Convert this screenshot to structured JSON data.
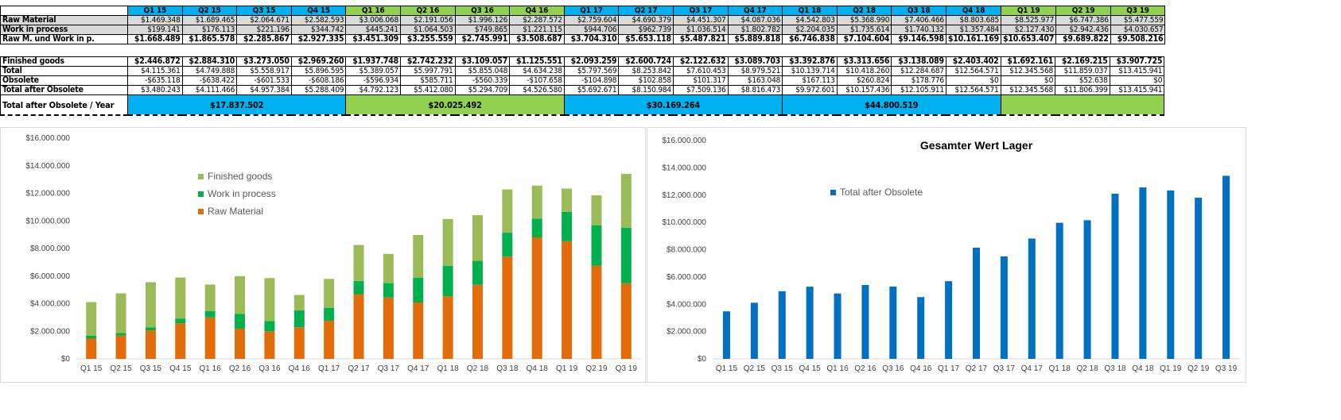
{
  "table": {
    "quarters": [
      "Q1 15",
      "Q2 15",
      "Q3 15",
      "Q4 15",
      "Q1 16",
      "Q2 16",
      "Q3 16",
      "Q4 16",
      "Q1 17",
      "Q2 17",
      "Q3 17",
      "Q4 17",
      "Q1 18",
      "Q2 18",
      "Q3 18",
      "Q4 18",
      "Q1 19",
      "Q2 19",
      "Q3 19"
    ],
    "quarter_colors": [
      "#00B0F0",
      "#00B0F0",
      "#00B0F0",
      "#00B0F0",
      "#92D050",
      "#92D050",
      "#92D050",
      "#92D050",
      "#00B0F0",
      "#00B0F0",
      "#00B0F0",
      "#00B0F0",
      "#00B0F0",
      "#00B0F0",
      "#00B0F0",
      "#00B0F0",
      "#92D050",
      "#92D050",
      "#92D050"
    ],
    "top_rows": [
      {
        "label": "Raw Material",
        "style": "gray",
        "values": [
          "$1.469.348",
          "$1.689.465",
          "$2.064.671",
          "$2.582.593",
          "$3.006.068",
          "$2.191.056",
          "$1.996.126",
          "$2.287.572",
          "$2.759.604",
          "$4.690.379",
          "$4.451.307",
          "$4.087.036",
          "$4.542.803",
          "$5.368.990",
          "$7.406.466",
          "$8.803.685",
          "$8.525.977",
          "$6.747.386",
          "$5.477.559"
        ]
      },
      {
        "label": "Work in process",
        "style": "gray",
        "values": [
          "$199.141",
          "$176.113",
          "$221.196",
          "$344.742",
          "$445.241",
          "$1.064.503",
          "$749.865",
          "$1.221.115",
          "$944.706",
          "$962.739",
          "$1.036.514",
          "$1.802.782",
          "$2.204.035",
          "$1.735.614",
          "$1.740.132",
          "$1.357.484",
          "$2.127.430",
          "$2.942.436",
          "$4.030.657"
        ]
      },
      {
        "label": "Raw M. und Work in p.",
        "style": "b",
        "values": [
          "$1.668.489",
          "$1.865.578",
          "$2.285.867",
          "$2.927.335",
          "$3.451.309",
          "$3.255.559",
          "$2.745.991",
          "$3.508.687",
          "$3.704.310",
          "$5.653.118",
          "$5.487.821",
          "$5.889.818",
          "$6.746.838",
          "$7.104.604",
          "$9.146.598",
          "$10.161.169",
          "$10.653.407",
          "$9.689.822",
          "$9.508.216"
        ]
      }
    ],
    "bottom_rows": [
      {
        "label": "Finished goods",
        "style": "b",
        "values": [
          "$2.446.872",
          "$2.884.310",
          "$3.273.050",
          "$2.969.260",
          "$1.937.748",
          "$2.742.232",
          "$3.109.057",
          "$1.125.551",
          "$2.093.259",
          "$2.600.724",
          "$2.122.632",
          "$3.089.703",
          "$3.392.876",
          "$3.313.656",
          "$3.138.089",
          "$2.403.402",
          "$1.692.161",
          "$2.169.215",
          "$3.907.725"
        ]
      },
      {
        "label": "Total",
        "style": "",
        "values": [
          "$4.115.361",
          "$4.749.888",
          "$5.558.917",
          "$5.896.595",
          "$5.389.057",
          "$5.997.791",
          "$5.855.048",
          "$4.634.238",
          "$5.797.569",
          "$8.253.842",
          "$7.610.453",
          "$8.979.521",
          "$10.139.714",
          "$10.418.260",
          "$12.284.687",
          "$12.564.571",
          "$12.345.568",
          "$11.859.037",
          "$13.415.941"
        ]
      },
      {
        "label": "Obsolete",
        "style": "",
        "values": [
          "-$635.118",
          "-$638.422",
          "-$601.533",
          "-$608.186",
          "-$596.934",
          "$585.711",
          "-$560.339",
          "-$107.658",
          "-$104.898",
          "$102.858",
          "$101.317",
          "$163.048",
          "$167.113",
          "$260.824",
          "$178.776",
          "$0",
          "$0",
          "$52.638",
          "$0"
        ]
      },
      {
        "label": "Total after Obsolete",
        "style": "",
        "values": [
          "$3.480.243",
          "$4.111.466",
          "$4.957.384",
          "$5.288.409",
          "$4.792.123",
          "$5.412.080",
          "$5.294.709",
          "$4.526.580",
          "$5.692.671",
          "$8.150.984",
          "$7.509.136",
          "$8.816.473",
          "$9.972.601",
          "$10.157.436",
          "$12.105.911",
          "$12.564.571",
          "$12.345.568",
          "$11.806.399",
          "$13.415.941"
        ]
      }
    ],
    "year_row": {
      "label": "Total after Obsolete / Year",
      "years": [
        {
          "value": "$17.837.502",
          "span": 4,
          "color": "#00B0F0"
        },
        {
          "value": "$20.025.492",
          "span": 4,
          "color": "#92D050"
        },
        {
          "value": "$30.169.264",
          "span": 4,
          "color": "#00B0F0"
        },
        {
          "value": "$44.800.519",
          "span": 4,
          "color": "#00B0F0"
        },
        {
          "value": "",
          "span": 3,
          "color": "#92D050"
        }
      ]
    }
  },
  "chart_data": [
    {
      "type": "bar",
      "stacked": true,
      "title": "",
      "categories": [
        "Q1 15",
        "Q2 15",
        "Q3 15",
        "Q4 15",
        "Q1 16",
        "Q2 16",
        "Q3 16",
        "Q4 16",
        "Q1 17",
        "Q2 17",
        "Q3 17",
        "Q4 17",
        "Q1 18",
        "Q2 18",
        "Q3 18",
        "Q4 18",
        "Q1 19",
        "Q2 19",
        "Q3 19"
      ],
      "ylim": [
        0,
        16000000
      ],
      "yticks": [
        "$0",
        "$2.000.000",
        "$4.000.000",
        "$6.000.000",
        "$8.000.000",
        "$10.000.000",
        "$12.000.000",
        "$14.000.000",
        "$16.000.000"
      ],
      "legend": "top-left",
      "series": [
        {
          "name": "Raw Material",
          "color": "#E36C0A",
          "values": [
            1469348,
            1689465,
            2064671,
            2582593,
            3006068,
            2191056,
            1996126,
            2287572,
            2759604,
            4690379,
            4451307,
            4087036,
            4542803,
            5368990,
            7406466,
            8803685,
            8525977,
            6747386,
            5477559
          ]
        },
        {
          "name": "Work in process",
          "color": "#00B050",
          "values": [
            199141,
            176113,
            221196,
            344742,
            445241,
            1064503,
            749865,
            1221115,
            944706,
            962739,
            1036514,
            1802782,
            2204035,
            1735614,
            1740132,
            1357484,
            2127430,
            2942436,
            4030657
          ]
        },
        {
          "name": "Finished goods",
          "color": "#9BBB59",
          "values": [
            2446872,
            2884310,
            3273050,
            2969260,
            1937748,
            2742232,
            3109057,
            1125551,
            2093259,
            2600724,
            2122632,
            3089703,
            3392876,
            3313656,
            3138089,
            2403402,
            1692161,
            2169215,
            3907725
          ]
        }
      ]
    },
    {
      "type": "bar",
      "stacked": false,
      "title": "Gesamter Wert Lager",
      "categories": [
        "Q1 15",
        "Q2 15",
        "Q3 15",
        "Q4 15",
        "Q1 16",
        "Q2 16",
        "Q3 16",
        "Q4 16",
        "Q1 17",
        "Q2 17",
        "Q3 17",
        "Q4 17",
        "Q1 18",
        "Q2 18",
        "Q3 18",
        "Q4 18",
        "Q1 19",
        "Q2 19",
        "Q3 19"
      ],
      "ylim": [
        0,
        16000000
      ],
      "yticks": [
        "$0",
        "$2.000.000",
        "$4.000.000",
        "$6.000.000",
        "$8.000.000",
        "$10.000.000",
        "$12.000.000",
        "$14.000.000",
        "$16.000.000"
      ],
      "legend": "top-left",
      "series": [
        {
          "name": "Total after Obsolete",
          "color": "#0070C0",
          "values": [
            3480243,
            4111466,
            4957384,
            5288409,
            4792123,
            5412080,
            5294709,
            4526580,
            5692671,
            8150984,
            7509136,
            8816473,
            9972601,
            10157436,
            12105911,
            12564571,
            12345568,
            11806399,
            13415941
          ]
        }
      ]
    }
  ]
}
